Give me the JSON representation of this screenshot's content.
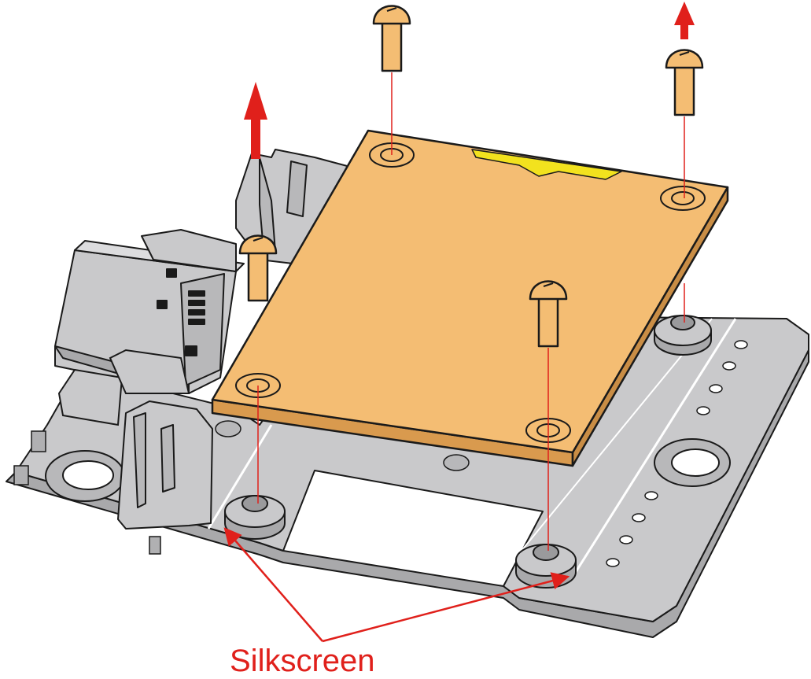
{
  "diagram": {
    "callout_label": "Silkscreen",
    "colors": {
      "base_board": "#c9c9cb",
      "base_board_side": "#a9a9ab",
      "module_board": "#f4bd73",
      "module_board_side": "#d99a4e",
      "screw": "#f4bd73",
      "outline": "#1a1a1a",
      "arrow": "#e0201b",
      "label_pad": "#f2e21e",
      "silkscreen": "#ffffff"
    },
    "icons": [
      "up-arrow-icon",
      "screw-icon",
      "callout-arrow-icon"
    ]
  }
}
